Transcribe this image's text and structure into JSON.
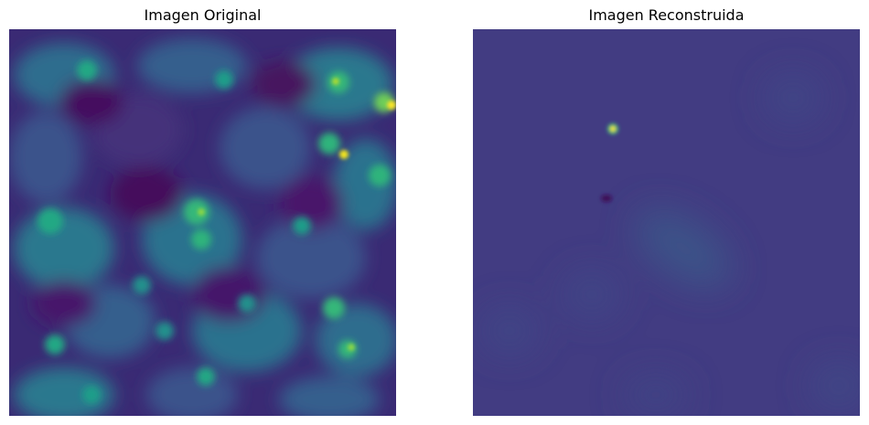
{
  "figure": {
    "left_title": "Imagen Original",
    "right_title": "Imagen Reconstruida"
  },
  "colors": {
    "background": "#ffffff",
    "colormap": "viridis",
    "original_base": "#3b1a6a",
    "reconstructed_base": "#413b82",
    "bright_spot": "#fde725"
  }
}
